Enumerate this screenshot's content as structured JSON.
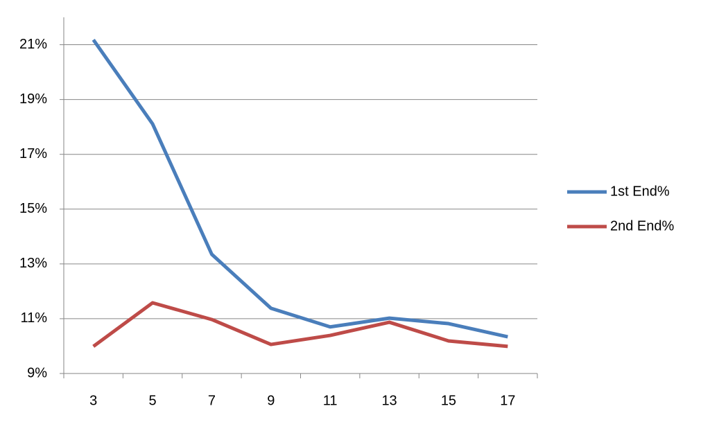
{
  "chart_data": {
    "type": "line",
    "categories": [
      "3",
      "5",
      "7",
      "9",
      "11",
      "13",
      "15",
      "17"
    ],
    "series": [
      {
        "name": "1st End%",
        "color": "#4a7ebb",
        "values": [
          21.18,
          18.11,
          13.35,
          11.38,
          10.7,
          11.02,
          10.82,
          10.34
        ]
      },
      {
        "name": "2nd End%",
        "color": "#be4b48",
        "values": [
          9.99,
          11.58,
          10.97,
          10.06,
          10.39,
          10.87,
          10.19,
          9.99
        ]
      }
    ],
    "ylim": [
      9,
      22
    ],
    "yticks": [
      {
        "value": 9,
        "label": "9%"
      },
      {
        "value": 11,
        "label": "11%"
      },
      {
        "value": 13,
        "label": "13%"
      },
      {
        "value": 15,
        "label": "15%"
      },
      {
        "value": 17,
        "label": "17%"
      },
      {
        "value": 19,
        "label": "19%"
      },
      {
        "value": 21,
        "label": "21%"
      }
    ],
    "grid": true,
    "legend": "right"
  }
}
